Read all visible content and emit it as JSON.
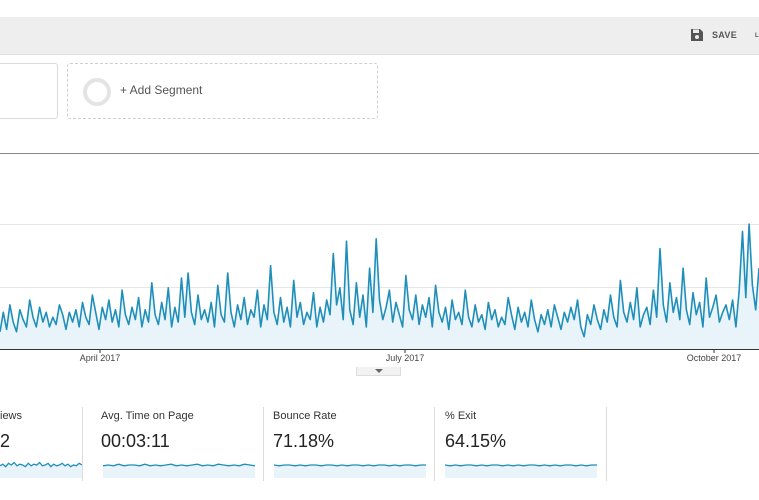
{
  "toolbar": {
    "save_label": "SAVE",
    "save_icon": "floppy-disk-icon",
    "overflow_label": "L"
  },
  "segments": {
    "add_label": "+ Add Segment"
  },
  "colors": {
    "line": "#1f8fba",
    "fill": "#e8f4fa",
    "toolbar_bg": "#eeeeee"
  },
  "chart_data": {
    "type": "area",
    "x_tick_labels": [
      "April 2017",
      "July 2017",
      "October 2017"
    ],
    "grid": "horizontal",
    "values": [
      7,
      15,
      8,
      18,
      11,
      7,
      16,
      12,
      9,
      20,
      13,
      9,
      17,
      11,
      15,
      9,
      13,
      10,
      18,
      14,
      8,
      15,
      11,
      16,
      9,
      19,
      13,
      10,
      22,
      15,
      8,
      17,
      12,
      20,
      11,
      16,
      9,
      24,
      14,
      10,
      17,
      12,
      21,
      9,
      16,
      11,
      27,
      14,
      10,
      19,
      12,
      25,
      9,
      17,
      11,
      29,
      13,
      31,
      15,
      10,
      22,
      12,
      16,
      11,
      19,
      9,
      26,
      14,
      11,
      31,
      15,
      9,
      18,
      12,
      21,
      10,
      16,
      13,
      24,
      9,
      18,
      12,
      34,
      15,
      10,
      21,
      11,
      17,
      9,
      28,
      13,
      19,
      10,
      15,
      12,
      23,
      9,
      17,
      11,
      20,
      14,
      39,
      18,
      25,
      12,
      44,
      16,
      10,
      27,
      13,
      22,
      9,
      33,
      15,
      45,
      20,
      12,
      17,
      24,
      11,
      19,
      14,
      9,
      30,
      16,
      12,
      22,
      10,
      18,
      13,
      21,
      9,
      26,
      15,
      11,
      17,
      8,
      20,
      12,
      15,
      10,
      24,
      13,
      9,
      18,
      11,
      14,
      8,
      19,
      12,
      16,
      9,
      13,
      10,
      21,
      14,
      8,
      17,
      11,
      15,
      9,
      20,
      12,
      7,
      14,
      10,
      16,
      9,
      18,
      13,
      8,
      15,
      11,
      17,
      12,
      20,
      9,
      5,
      14,
      10,
      18,
      12,
      8,
      16,
      11,
      22,
      13,
      9,
      28,
      15,
      11,
      19,
      12,
      25,
      9,
      14,
      17,
      10,
      24,
      13,
      41,
      18,
      11,
      27,
      15,
      21,
      12,
      33,
      16,
      10,
      23,
      14,
      19,
      9,
      29,
      13,
      17,
      22,
      11,
      15,
      18,
      12,
      20,
      9,
      24,
      48,
      21,
      51,
      26,
      16,
      33
    ],
    "ylim": [
      0,
      80
    ]
  },
  "metrics": [
    {
      "label": "iews",
      "value": "2",
      "spark": [
        5,
        7,
        4,
        8,
        6,
        9,
        5,
        7,
        6,
        4,
        8,
        5,
        7,
        6,
        9,
        5,
        6,
        8,
        4,
        7,
        5,
        6,
        8,
        5,
        7,
        4,
        6,
        5,
        8,
        6
      ]
    },
    {
      "label": "Avg. Time on Page",
      "value": "00:03:11",
      "spark": [
        5,
        6,
        5,
        7,
        5,
        6,
        6,
        5,
        7,
        5,
        6,
        5,
        6,
        7,
        5,
        6,
        5,
        6,
        7,
        5,
        6,
        5,
        7,
        6,
        5,
        6,
        5,
        7,
        6,
        5
      ]
    },
    {
      "label": "Bounce Rate",
      "value": "71.18%",
      "spark": [
        6,
        5,
        6,
        6,
        5,
        6,
        5,
        6,
        6,
        5,
        6,
        6,
        5,
        6,
        5,
        6,
        6,
        5,
        6,
        5,
        6,
        6,
        5,
        6,
        5,
        6,
        6,
        5,
        6,
        6
      ]
    },
    {
      "label": "% Exit",
      "value": "64.15%",
      "spark": [
        6,
        5,
        6,
        5,
        6,
        6,
        5,
        6,
        5,
        6,
        6,
        5,
        6,
        5,
        6,
        5,
        6,
        6,
        5,
        6,
        5,
        6,
        5,
        6,
        6,
        5,
        6,
        5,
        6,
        6
      ]
    }
  ]
}
